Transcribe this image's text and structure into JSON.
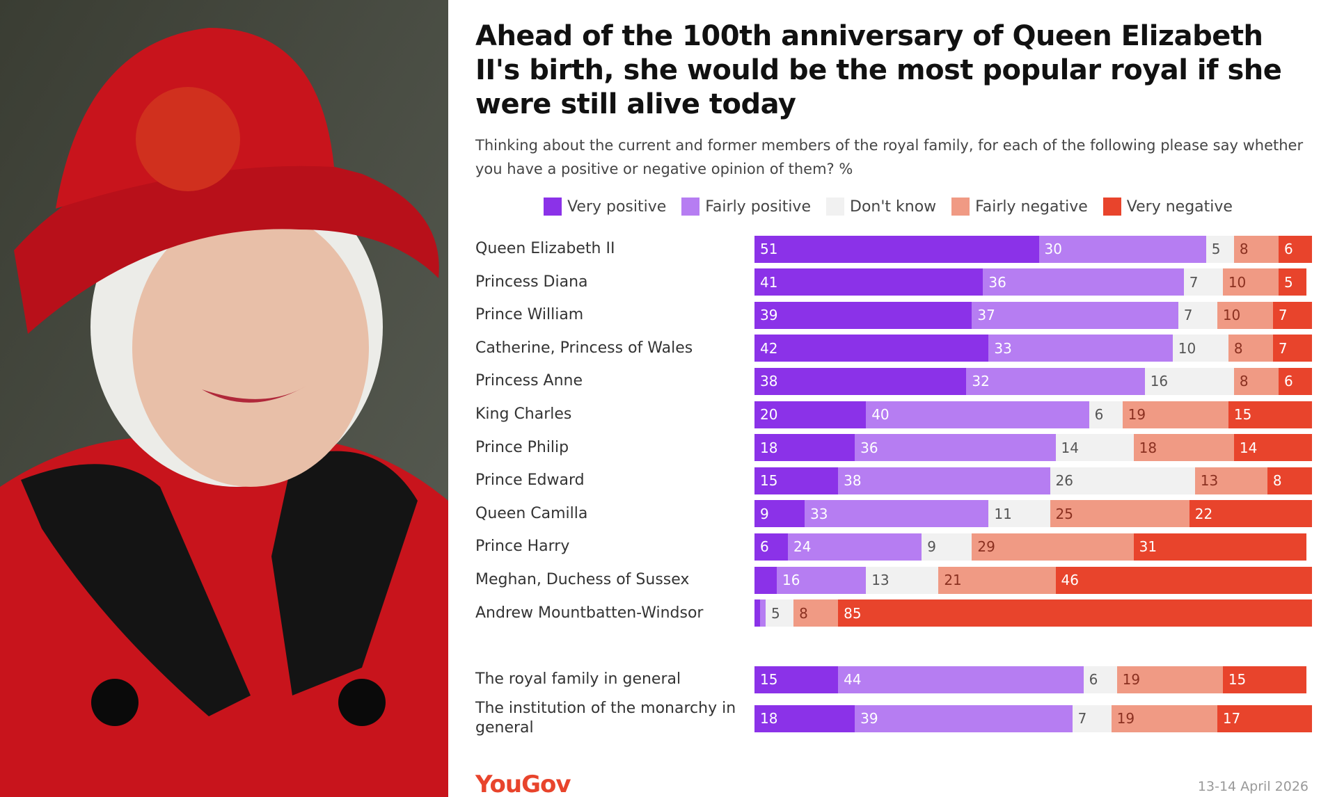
{
  "chart_data": {
    "type": "stacked-bar",
    "orientation": "horizontal",
    "title": "Ahead of the 100th anniversary of Queen Elizabeth II's birth, she would be the most popular royal if she were still alive today",
    "subtitle": "Thinking about the current and former members of the royal family, for each of the following please say whether you have a positive or negative opinion of them? %",
    "categories": [
      "Queen Elizabeth II",
      "Princess Diana",
      "Prince William",
      "Catherine, Princess of Wales",
      "Princess Anne",
      "King Charles",
      "Prince Philip",
      "Prince Edward",
      "Queen Camilla",
      "Prince Harry",
      "Meghan, Duchess of Sussex",
      "Andrew Mountbatten-Windsor",
      "The royal family in general",
      "The institution of the monarchy in general"
    ],
    "series": [
      {
        "name": "Very positive",
        "color": "#8b32e8",
        "values": [
          51,
          41,
          39,
          42,
          38,
          20,
          18,
          15,
          9,
          6,
          4,
          1,
          15,
          18
        ]
      },
      {
        "name": "Fairly positive",
        "color": "#b67df2",
        "values": [
          30,
          36,
          37,
          33,
          32,
          40,
          36,
          38,
          33,
          24,
          16,
          1,
          44,
          39
        ]
      },
      {
        "name": "Don't know",
        "color": "#f1f1f1",
        "values": [
          5,
          7,
          7,
          10,
          16,
          6,
          14,
          26,
          11,
          9,
          13,
          5,
          6,
          7
        ]
      },
      {
        "name": "Fairly negative",
        "color": "#f09a84",
        "values": [
          8,
          10,
          10,
          8,
          8,
          19,
          18,
          13,
          25,
          29,
          21,
          8,
          19,
          19
        ]
      },
      {
        "name": "Very negative",
        "color": "#e8442c",
        "values": [
          6,
          5,
          7,
          7,
          6,
          15,
          14,
          8,
          22,
          31,
          46,
          85,
          15,
          17
        ]
      }
    ],
    "xlim": [
      0,
      100
    ],
    "source": "YouGov",
    "note": "13-14 April 2026"
  }
}
